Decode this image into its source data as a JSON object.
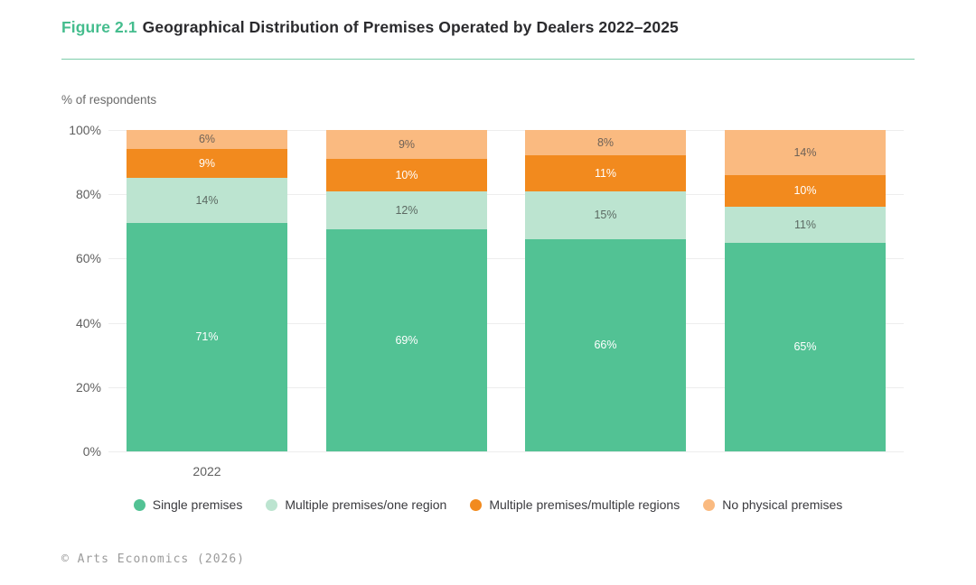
{
  "title": {
    "prefix": "Figure 2.1",
    "text": "Geographical Distribution of Premises Operated by Dealers 2022–2025"
  },
  "footer": "© Arts Economics (2026)",
  "colors": {
    "accent_green": "#45BD8E",
    "divider_green": "#7ECDAB",
    "gridline": "#EDEDED",
    "title_text": "#2B2B2E",
    "axis_text": "#606060",
    "legend_text": "#3A3A3E",
    "footer_text": "#9B9B9B"
  },
  "chart_data": {
    "type": "bar",
    "stacked": true,
    "title": "Geographical Distribution of Premises Operated by Dealers 2022–2025",
    "ylabel": "% of respondents",
    "xlabel": "",
    "ylim": [
      0,
      100
    ],
    "yticks": [
      0,
      20,
      40,
      60,
      80,
      100
    ],
    "ytick_suffix": "%",
    "grid": true,
    "legend_position": "bottom",
    "categories": [
      "2022",
      "",
      "",
      ""
    ],
    "series": [
      {
        "name": "Single premises",
        "color": "#52C294",
        "label_color": "#FFFFFF",
        "values": [
          71,
          69,
          66,
          65
        ]
      },
      {
        "name": "Multiple premises/one region",
        "color": "#BCE4D0",
        "label_color": "#5C6A63",
        "values": [
          14,
          12,
          15,
          11
        ]
      },
      {
        "name": "Multiple premises/multiple regions",
        "color": "#F28A1E",
        "label_color": "#FFFFFF",
        "values": [
          9,
          10,
          11,
          10
        ]
      },
      {
        "name": "No physical premises",
        "color": "#FABA80",
        "label_color": "#6E6257",
        "values": [
          6,
          9,
          8,
          14
        ]
      }
    ],
    "value_suffix": "%"
  }
}
